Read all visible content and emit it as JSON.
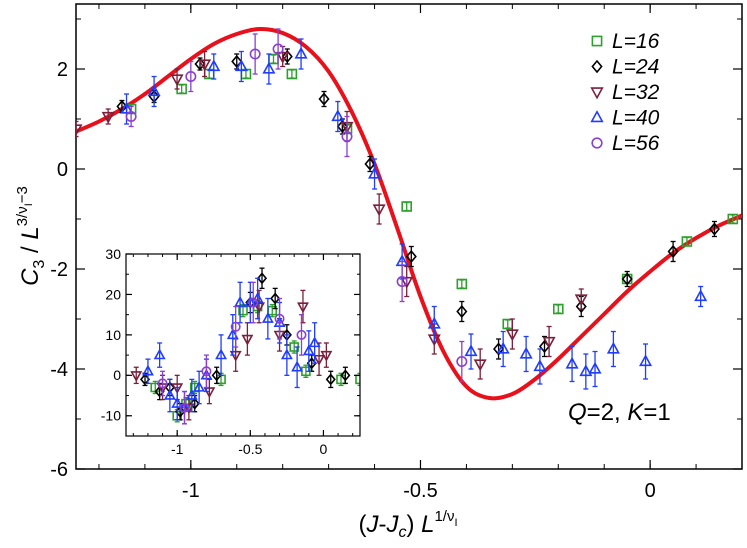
{
  "chart_data": [
    {
      "type": "scatter",
      "title": "",
      "xlabel": "(J-J_c) L^{1/ν_I}",
      "ylabel": "C_3 / L^{3/ν_I - 3}",
      "xlim": [
        -1.25,
        0.2
      ],
      "ylim": [
        -6,
        3.3
      ],
      "xticks": [
        -1,
        -0.5,
        0
      ],
      "xtick_labels": [
        "-1",
        "-0.5",
        "0"
      ],
      "yticks": [
        -6,
        -4,
        -2,
        0,
        2
      ],
      "ytick_labels": [
        "-6",
        "-4",
        "-2",
        "0",
        "2"
      ],
      "annotation": {
        "q_label": "Q",
        "q_value": "=2, ",
        "k_label": "K",
        "k_value": "=1"
      },
      "legend": {
        "placement": "top-right"
      },
      "series": [
        {
          "name": "L=16",
          "marker": "square",
          "color": "#2ca02c",
          "points": [
            [
              -1.13,
              1.2
            ],
            [
              -1.02,
              1.6
            ],
            [
              -0.96,
              1.9
            ],
            [
              -0.88,
              1.9
            ],
            [
              -0.82,
              2.2
            ],
            [
              -0.78,
              1.9
            ],
            [
              -0.66,
              0.8
            ],
            [
              -0.53,
              -0.75
            ],
            [
              -0.41,
              -2.3
            ],
            [
              -0.31,
              -3.1
            ],
            [
              -0.2,
              -2.8
            ],
            [
              -0.05,
              -2.2
            ],
            [
              0.08,
              -1.45
            ],
            [
              0.18,
              -1.0
            ]
          ],
          "errors": [
            0.08,
            0.08,
            0.08,
            0.08,
            0.08,
            0.08,
            0.08,
            0.08,
            0.08,
            0.08,
            0.08,
            0.08,
            0.08,
            0.08
          ]
        },
        {
          "name": "L=24",
          "marker": "diamond",
          "color": "#000000",
          "points": [
            [
              -1.15,
              1.25
            ],
            [
              -1.08,
              1.45
            ],
            [
              -0.98,
              2.1
            ],
            [
              -0.9,
              2.15
            ],
            [
              -0.79,
              2.25
            ],
            [
              -0.71,
              1.4
            ],
            [
              -0.67,
              0.85
            ],
            [
              -0.61,
              0.1
            ],
            [
              -0.52,
              -1.75
            ],
            [
              -0.41,
              -2.85
            ],
            [
              -0.33,
              -3.6
            ],
            [
              -0.23,
              -3.55
            ],
            [
              -0.15,
              -2.75
            ],
            [
              -0.05,
              -2.2
            ],
            [
              0.05,
              -1.65
            ],
            [
              0.14,
              -1.2
            ]
          ],
          "errors": [
            0.12,
            0.12,
            0.12,
            0.15,
            0.15,
            0.15,
            0.15,
            0.15,
            0.2,
            0.2,
            0.2,
            0.2,
            0.2,
            0.15,
            0.2,
            0.15
          ]
        },
        {
          "name": "L=32",
          "marker": "triangle-down",
          "color": "#7b1f3a",
          "points": [
            [
              -1.25,
              0.8
            ],
            [
              -1.18,
              1.05
            ],
            [
              -1.03,
              1.8
            ],
            [
              -0.97,
              2.1
            ],
            [
              -0.8,
              2.25
            ],
            [
              -0.66,
              0.85
            ],
            [
              -0.59,
              -0.8
            ],
            [
              -0.53,
              -2.25
            ],
            [
              -0.47,
              -3.4
            ],
            [
              -0.37,
              -3.9
            ],
            [
              -0.3,
              -3.3
            ],
            [
              -0.22,
              -3.45
            ],
            [
              -0.15,
              -2.6
            ]
          ],
          "errors": [
            0.15,
            0.15,
            0.2,
            0.25,
            0.2,
            0.3,
            0.3,
            0.3,
            0.3,
            0.3,
            0.3,
            0.3,
            0.2
          ]
        },
        {
          "name": "L=40",
          "marker": "triangle-up",
          "color": "#1f3cff",
          "points": [
            [
              -1.14,
              1.2
            ],
            [
              -1.08,
              1.55
            ],
            [
              -0.95,
              2.05
            ],
            [
              -0.89,
              2.05
            ],
            [
              -0.83,
              2.0
            ],
            [
              -0.76,
              2.3
            ],
            [
              -0.68,
              1.05
            ],
            [
              -0.6,
              -0.1
            ],
            [
              -0.54,
              -1.85
            ],
            [
              -0.47,
              -3.1
            ],
            [
              -0.39,
              -3.65
            ],
            [
              -0.32,
              -3.6
            ],
            [
              -0.27,
              -3.7
            ],
            [
              -0.24,
              -3.95
            ],
            [
              -0.17,
              -3.9
            ],
            [
              -0.14,
              -4.05
            ],
            [
              -0.12,
              -4.0
            ],
            [
              -0.08,
              -3.6
            ],
            [
              -0.01,
              -3.85
            ],
            [
              0.11,
              -2.55
            ]
          ],
          "errors": [
            0.3,
            0.3,
            0.25,
            0.3,
            0.3,
            0.3,
            0.3,
            0.3,
            0.35,
            0.35,
            0.35,
            0.35,
            0.35,
            0.35,
            0.35,
            0.35,
            0.35,
            0.35,
            0.35,
            0.2
          ]
        },
        {
          "name": "L=56",
          "marker": "circle",
          "color": "#8a3fd1",
          "points": [
            [
              -1.13,
              1.05
            ],
            [
              -1.0,
              1.85
            ],
            [
              -0.86,
              2.3
            ],
            [
              -0.81,
              2.4
            ],
            [
              -0.66,
              0.65
            ],
            [
              -0.54,
              -2.25
            ],
            [
              -0.41,
              -3.85
            ]
          ],
          "errors": [
            0.2,
            0.3,
            0.4,
            0.4,
            0.4,
            0.4,
            0.4
          ]
        }
      ],
      "fit_curve": {
        "name": "fit",
        "color": "#e8101b",
        "points": [
          [
            -1.25,
            0.75
          ],
          [
            -1.2,
            0.95
          ],
          [
            -1.15,
            1.2
          ],
          [
            -1.1,
            1.5
          ],
          [
            -1.05,
            1.85
          ],
          [
            -1.0,
            2.2
          ],
          [
            -0.95,
            2.5
          ],
          [
            -0.9,
            2.7
          ],
          [
            -0.85,
            2.8
          ],
          [
            -0.8,
            2.72
          ],
          [
            -0.75,
            2.45
          ],
          [
            -0.7,
            1.95
          ],
          [
            -0.65,
            1.15
          ],
          [
            -0.6,
            0.1
          ],
          [
            -0.55,
            -1.2
          ],
          [
            -0.5,
            -2.55
          ],
          [
            -0.45,
            -3.65
          ],
          [
            -0.4,
            -4.35
          ],
          [
            -0.35,
            -4.58
          ],
          [
            -0.3,
            -4.5
          ],
          [
            -0.25,
            -4.2
          ],
          [
            -0.2,
            -3.8
          ],
          [
            -0.15,
            -3.35
          ],
          [
            -0.1,
            -2.9
          ],
          [
            -0.05,
            -2.45
          ],
          [
            0.0,
            -2.05
          ],
          [
            0.05,
            -1.68
          ],
          [
            0.1,
            -1.38
          ],
          [
            0.15,
            -1.13
          ],
          [
            0.2,
            -0.93
          ]
        ]
      }
    },
    {
      "type": "scatter",
      "title": "inset",
      "xlim": [
        -1.35,
        0.25
      ],
      "ylim": [
        -15,
        30
      ],
      "xticks": [
        -1,
        -0.5,
        0
      ],
      "xtick_labels": [
        "-1",
        "-0.5",
        "0"
      ],
      "yticks": [
        -10,
        0,
        10,
        20,
        30
      ],
      "ytick_labels": [
        "-10",
        "0",
        "10",
        "20",
        "30"
      ],
      "series": [
        {
          "name": "L=16",
          "marker": "square",
          "color": "#2ca02c",
          "points": [
            [
              -1.15,
              -3
            ],
            [
              -1.0,
              -10
            ],
            [
              -0.94,
              -7
            ],
            [
              -0.88,
              -3
            ],
            [
              -0.7,
              -1
            ],
            [
              -0.55,
              16
            ],
            [
              -0.45,
              17
            ],
            [
              -0.35,
              16
            ],
            [
              -0.2,
              7
            ],
            [
              -0.12,
              1
            ],
            [
              0.12,
              -1
            ],
            [
              0.25,
              -1
            ]
          ],
          "errors": [
            1.5,
            1.5,
            1.5,
            1.5,
            1.5,
            1.5,
            1.5,
            1.5,
            1.5,
            1.5,
            1.5,
            1.5
          ]
        },
        {
          "name": "L=24",
          "marker": "diamond",
          "color": "#000000",
          "points": [
            [
              -1.22,
              -1
            ],
            [
              -1.12,
              -4
            ],
            [
              -1.05,
              -3
            ],
            [
              -0.98,
              -9
            ],
            [
              -0.88,
              -7
            ],
            [
              -0.73,
              0
            ],
            [
              -0.5,
              18
            ],
            [
              -0.42,
              24
            ],
            [
              -0.33,
              19
            ],
            [
              -0.25,
              10
            ],
            [
              -0.08,
              3
            ],
            [
              0.05,
              -1
            ],
            [
              0.15,
              0
            ]
          ],
          "errors": [
            1.5,
            2,
            2,
            2,
            2,
            2,
            2.5,
            2.5,
            2.5,
            2.5,
            2,
            2,
            2
          ]
        },
        {
          "name": "L=32",
          "marker": "triangle-down",
          "color": "#7b1f3a",
          "points": [
            [
              -1.28,
              0
            ],
            [
              -1.1,
              -3
            ],
            [
              -1.0,
              -3
            ],
            [
              -0.92,
              -8
            ],
            [
              -0.78,
              -4
            ],
            [
              -0.6,
              5
            ],
            [
              -0.52,
              9
            ],
            [
              -0.44,
              17
            ],
            [
              -0.3,
              10
            ],
            [
              -0.14,
              17
            ],
            [
              -0.03,
              4
            ],
            [
              0.02,
              5
            ]
          ],
          "errors": [
            2,
            3,
            3,
            3,
            3,
            4,
            4,
            4,
            4,
            4,
            4,
            3
          ]
        },
        {
          "name": "L=40",
          "marker": "triangle-up",
          "color": "#1f3cff",
          "points": [
            [
              -1.2,
              1
            ],
            [
              -1.12,
              5
            ],
            [
              -1.05,
              -5
            ],
            [
              -1.0,
              -7
            ],
            [
              -0.95,
              -8
            ],
            [
              -0.9,
              -5
            ],
            [
              -0.85,
              -3
            ],
            [
              -0.8,
              0
            ],
            [
              -0.7,
              5
            ],
            [
              -0.62,
              10
            ],
            [
              -0.57,
              18
            ],
            [
              -0.5,
              18
            ],
            [
              -0.45,
              19
            ],
            [
              -0.38,
              14
            ],
            [
              -0.3,
              13
            ],
            [
              -0.25,
              5
            ],
            [
              -0.18,
              2
            ],
            [
              -0.1,
              6
            ],
            [
              -0.06,
              8
            ]
          ],
          "errors": [
            3,
            3,
            4,
            4,
            4,
            4,
            4,
            4,
            5,
            5,
            5,
            5,
            5,
            5,
            5,
            5,
            5,
            5,
            5
          ]
        },
        {
          "name": "L=56",
          "marker": "circle",
          "color": "#8a3fd1",
          "points": [
            [
              -1.1,
              -2
            ],
            [
              -0.95,
              -8
            ],
            [
              -0.8,
              1
            ],
            [
              -0.6,
              12
            ],
            [
              -0.48,
              18
            ],
            [
              -0.3,
              14
            ],
            [
              -0.15,
              10
            ]
          ],
          "errors": [
            3,
            4,
            4,
            5,
            5,
            5,
            5
          ]
        }
      ]
    }
  ]
}
